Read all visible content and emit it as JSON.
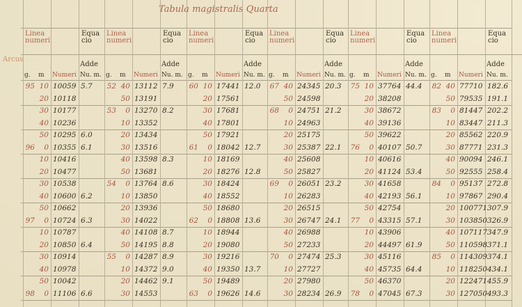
{
  "title": "Tabula magistralis Quarta",
  "header": {
    "linea_label": "Linea numeri",
    "equatio_label": "Equa cio",
    "adde_label": "Adde",
    "arcus_label": "Arcus",
    "col_labels": [
      "g.",
      "m",
      "Numeri",
      "Nu. m."
    ]
  },
  "colors": {
    "red_ink": "#a8553d",
    "dark_ink": "#3b3022",
    "paper": "#efe7cf"
  },
  "table": {
    "groups": [
      {
        "rows": [
          [
            "95",
            "10",
            "10059",
            "5.7"
          ],
          [
            "",
            "20",
            "10118",
            ""
          ],
          [
            "",
            "30",
            "10177",
            ""
          ],
          [
            "",
            "40",
            "10236",
            ""
          ],
          [
            "",
            "50",
            "10295",
            "6.0"
          ],
          [
            "96",
            "0",
            "10355",
            "6.1"
          ],
          [
            "",
            "10",
            "10416",
            ""
          ],
          [
            "",
            "20",
            "10477",
            ""
          ],
          [
            "",
            "30",
            "10538",
            ""
          ],
          [
            "",
            "40",
            "10600",
            "6.2"
          ],
          [
            "",
            "50",
            "10662",
            ""
          ],
          [
            "97",
            "0",
            "10724",
            "6.3"
          ],
          [
            "",
            "10",
            "10787",
            ""
          ],
          [
            "",
            "20",
            "10850",
            "6.4"
          ],
          [
            "",
            "30",
            "10914",
            ""
          ],
          [
            "",
            "40",
            "10978",
            ""
          ],
          [
            "",
            "50",
            "10042",
            ""
          ],
          [
            "98",
            "0",
            "11106",
            "6.6"
          ]
        ]
      },
      {
        "rows": [
          [
            "52",
            "40",
            "13112",
            "7.9"
          ],
          [
            "",
            "50",
            "13191",
            ""
          ],
          [
            "53",
            "0",
            "13270",
            "8.2"
          ],
          [
            "",
            "10",
            "13352",
            ""
          ],
          [
            "",
            "20",
            "13434",
            ""
          ],
          [
            "",
            "30",
            "13516",
            ""
          ],
          [
            "",
            "40",
            "13598",
            "8.3"
          ],
          [
            "",
            "50",
            "13681",
            ""
          ],
          [
            "54",
            "0",
            "13764",
            "8.6"
          ],
          [
            "",
            "10",
            "13850",
            ""
          ],
          [
            "",
            "20",
            "13936",
            ""
          ],
          [
            "",
            "30",
            "14022",
            ""
          ],
          [
            "",
            "40",
            "14108",
            "8.7"
          ],
          [
            "",
            "50",
            "14195",
            "8.8"
          ],
          [
            "55",
            "0",
            "14287",
            "8.9"
          ],
          [
            "",
            "10",
            "14372",
            "9.0"
          ],
          [
            "",
            "20",
            "14462",
            "9.1"
          ],
          [
            "",
            "30",
            "14553",
            ""
          ]
        ]
      },
      {
        "rows": [
          [
            "60",
            "10",
            "17441",
            "12.0"
          ],
          [
            "",
            "20",
            "17561",
            ""
          ],
          [
            "",
            "30",
            "17681",
            ""
          ],
          [
            "",
            "40",
            "17801",
            ""
          ],
          [
            "",
            "50",
            "17921",
            ""
          ],
          [
            "61",
            "0",
            "18042",
            "12.7"
          ],
          [
            "",
            "10",
            "18169",
            ""
          ],
          [
            "",
            "20",
            "18276",
            "12.8"
          ],
          [
            "",
            "30",
            "18424",
            ""
          ],
          [
            "",
            "40",
            "18552",
            ""
          ],
          [
            "",
            "50",
            "18680",
            ""
          ],
          [
            "62",
            "0",
            "18808",
            "13.6"
          ],
          [
            "",
            "10",
            "18944",
            ""
          ],
          [
            "",
            "20",
            "19080",
            ""
          ],
          [
            "",
            "30",
            "19216",
            ""
          ],
          [
            "",
            "40",
            "19350",
            "13.7"
          ],
          [
            "",
            "50",
            "19489",
            ""
          ],
          [
            "63",
            "0",
            "19626",
            "14.6"
          ]
        ]
      },
      {
        "rows": [
          [
            "67",
            "40",
            "24345",
            "20.3"
          ],
          [
            "",
            "50",
            "24598",
            ""
          ],
          [
            "68",
            "0",
            "24751",
            "21.2"
          ],
          [
            "",
            "10",
            "24963",
            ""
          ],
          [
            "",
            "20",
            "25175",
            ""
          ],
          [
            "",
            "30",
            "25387",
            "22.1"
          ],
          [
            "",
            "40",
            "25608",
            ""
          ],
          [
            "",
            "50",
            "25827",
            ""
          ],
          [
            "69",
            "0",
            "26051",
            "23.2"
          ],
          [
            "",
            "10",
            "26283",
            ""
          ],
          [
            "",
            "20",
            "26515",
            ""
          ],
          [
            "",
            "30",
            "26747",
            "24.1"
          ],
          [
            "",
            "40",
            "26988",
            ""
          ],
          [
            "",
            "50",
            "27233",
            ""
          ],
          [
            "70",
            "0",
            "27474",
            "25.3"
          ],
          [
            "",
            "10",
            "27727",
            ""
          ],
          [
            "",
            "20",
            "27980",
            ""
          ],
          [
            "",
            "30",
            "28234",
            "26.9"
          ]
        ]
      },
      {
        "rows": [
          [
            "75",
            "10",
            "37764",
            "44.4"
          ],
          [
            "",
            "20",
            "38208",
            ""
          ],
          [
            "",
            "30",
            "38672",
            ""
          ],
          [
            "",
            "40",
            "39136",
            ""
          ],
          [
            "",
            "50",
            "39622",
            ""
          ],
          [
            "76",
            "0",
            "40107",
            "50.7"
          ],
          [
            "",
            "10",
            "40616",
            ""
          ],
          [
            "",
            "20",
            "41124",
            "53.4"
          ],
          [
            "",
            "30",
            "41658",
            ""
          ],
          [
            "",
            "40",
            "42193",
            "56.1"
          ],
          [
            "",
            "50",
            "42754",
            ""
          ],
          [
            "77",
            "0",
            "43315",
            "57.1"
          ],
          [
            "",
            "10",
            "43906",
            ""
          ],
          [
            "",
            "20",
            "44497",
            "61.9"
          ],
          [
            "",
            "30",
            "45116",
            ""
          ],
          [
            "",
            "40",
            "45735",
            "64.4"
          ],
          [
            "",
            "50",
            "46370",
            ""
          ],
          [
            "78",
            "0",
            "47045",
            "67.3"
          ]
        ]
      },
      {
        "rows": [
          [
            "82",
            "40",
            "77710",
            "182.6"
          ],
          [
            "",
            "50",
            "79535",
            "191.1"
          ],
          [
            "83",
            "0",
            "81447",
            "202.2"
          ],
          [
            "",
            "10",
            "83447",
            "211.3"
          ],
          [
            "",
            "20",
            "85562",
            "220.9"
          ],
          [
            "",
            "30",
            "87771",
            "231.3"
          ],
          [
            "",
            "40",
            "90094",
            "246.1"
          ],
          [
            "",
            "50",
            "92555",
            "258.4"
          ],
          [
            "84",
            "0",
            "95137",
            "272.8"
          ],
          [
            "",
            "10",
            "97867",
            "290.4"
          ],
          [
            "",
            "20",
            "100771",
            "307.9"
          ],
          [
            "",
            "30",
            "103850",
            "326.9"
          ],
          [
            "",
            "40",
            "107117",
            "347.9"
          ],
          [
            "",
            "50",
            "110598",
            "371.1"
          ],
          [
            "85",
            "0",
            "114309",
            "374.1"
          ],
          [
            "",
            "10",
            "118250",
            "434.1"
          ],
          [
            "",
            "20",
            "122471",
            "455.9"
          ],
          [
            "",
            "30",
            "127050",
            "493.3"
          ]
        ]
      }
    ]
  }
}
